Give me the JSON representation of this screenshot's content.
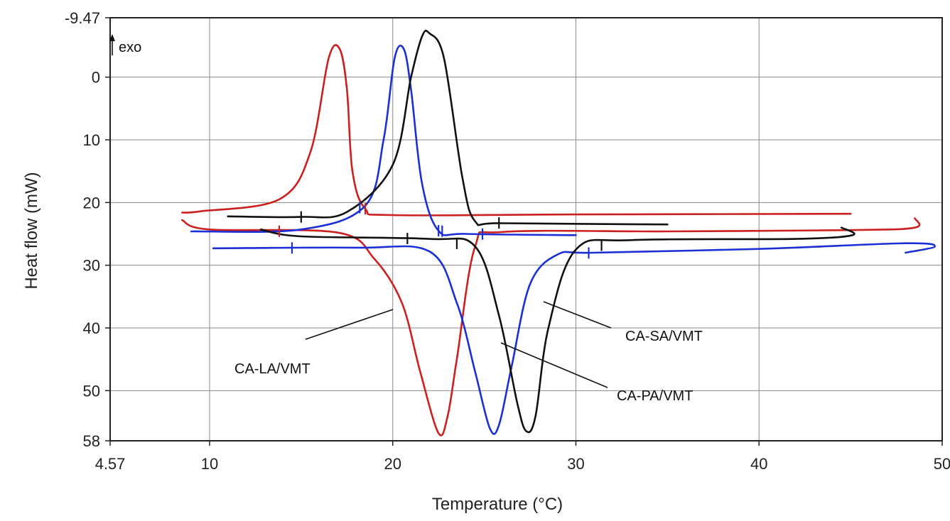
{
  "chart_data": {
    "type": "line",
    "title": "",
    "xlabel": "Temperature (°C)",
    "ylabel": "Heat flow (mW)",
    "xlim": [
      4.57,
      50
    ],
    "ylim": [
      -9.47,
      58
    ],
    "y_inverted": true,
    "x_ticks": [
      4.57,
      10,
      20,
      30,
      40,
      50
    ],
    "x_tick_labels": [
      "4.57",
      "10",
      "20",
      "30",
      "40",
      "50"
    ],
    "y_ticks": [
      -9.47,
      0,
      10,
      20,
      30,
      40,
      50,
      58
    ],
    "y_tick_labels": [
      "-9.47",
      "0",
      "10",
      "20",
      "30",
      "40",
      "50",
      "58"
    ],
    "grid": true,
    "exo_label": "exo",
    "annotations": [
      {
        "text": "CA-SA/VMT",
        "series": "CA-SA/VMT"
      },
      {
        "text": "CA-LA/VMT",
        "series": "CA-LA/VMT"
      },
      {
        "text": "CA-PA/VMT",
        "series": "CA-PA/VMT"
      }
    ],
    "series": [
      {
        "name": "CA-LA/VMT",
        "color": "#cc1f1f",
        "cooling_x": [
          45,
          30,
          20,
          18.5,
          17.8,
          17.5,
          17.1,
          16.5,
          15.5,
          13.8,
          9.5,
          8.5
        ],
        "cooling_y": [
          21.8,
          21.9,
          22.0,
          21.0,
          15.0,
          2.0,
          -4.5,
          -3.0,
          12.0,
          19.5,
          21.4,
          21.6
        ],
        "heating_x": [
          8.5,
          10,
          17,
          19,
          20.5,
          21.5,
          22.5,
          23.0,
          23.5,
          24.5,
          26,
          35,
          45,
          48.5,
          48.5
        ],
        "heating_y": [
          22.8,
          24.3,
          24.8,
          29.0,
          36.0,
          47.0,
          56.8,
          54.0,
          45.0,
          27.0,
          24.7,
          24.6,
          24.4,
          24.0,
          22.5
        ]
      },
      {
        "name": "CA-PA/VMT",
        "color": "#1b2fd6",
        "cooling_x": [
          30,
          24,
          22.5,
          21.6,
          21.0,
          20.6,
          20.1,
          19.5,
          18.5,
          15,
          9
        ],
        "cooling_y": [
          25.2,
          25.0,
          24.5,
          17.0,
          2.0,
          -4.5,
          -3.0,
          10.0,
          20.5,
          24.3,
          24.6
        ],
        "heating_x": [
          10.2,
          18,
          22,
          23.5,
          24.5,
          25.3,
          25.8,
          26.5,
          27.5,
          29,
          31,
          40,
          48,
          49.6,
          48
        ],
        "heating_y": [
          27.3,
          27.2,
          27.8,
          36.0,
          47.0,
          56.0,
          55.5,
          46.0,
          33.0,
          28.3,
          28.0,
          27.4,
          26.5,
          27.0,
          28.0
        ]
      },
      {
        "name": "CA-SA/VMT",
        "color": "#111111",
        "cooling_x": [
          35,
          26,
          24.5,
          23.8,
          22.8,
          22.0,
          21.6,
          21.0,
          20,
          17.5,
          15,
          11
        ],
        "cooling_y": [
          23.5,
          23.3,
          23.0,
          16.0,
          -3.0,
          -7.0,
          -6.5,
          0.0,
          14.0,
          21.5,
          22.3,
          22.2
        ],
        "heating_x": [
          12.8,
          15,
          22,
          24.5,
          25.8,
          26.8,
          27.3,
          27.8,
          28.5,
          30,
          33,
          42,
          45.1,
          44.5
        ],
        "heating_y": [
          24.3,
          25.4,
          25.8,
          27.0,
          38.0,
          52.0,
          56.5,
          54.0,
          40.0,
          27.5,
          26.0,
          25.8,
          25.2,
          24.0
        ]
      }
    ],
    "onset_marks": [
      {
        "series": "CA-LA/VMT",
        "x": [
          13.8,
          18.5
        ]
      },
      {
        "series": "CA-PA/VMT",
        "x": [
          14.5,
          18.2,
          22.5,
          22.7,
          24.9,
          30.7
        ]
      },
      {
        "series": "CA-SA/VMT",
        "x": [
          15.0,
          20.8,
          23.5,
          25.8,
          31.4
        ]
      }
    ]
  }
}
